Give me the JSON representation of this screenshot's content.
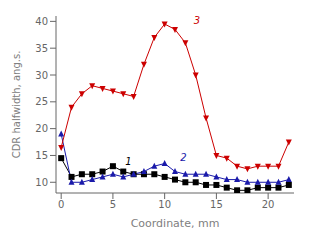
{
  "chart_data": {
    "type": "line",
    "title": "",
    "xlabel": "Coordinate, mm",
    "ylabel": "CDR halfwidth, ang.s.",
    "xlim": [
      -0.5,
      22.5
    ],
    "ylim": [
      8,
      41
    ],
    "xticks": [
      0,
      5,
      10,
      15,
      20
    ],
    "yticks": [
      10,
      15,
      20,
      25,
      30,
      35,
      40
    ],
    "grid": false,
    "series": [
      {
        "name": "1",
        "color": "#000000",
        "marker": "square",
        "x": [
          0,
          1,
          2,
          3,
          4,
          5,
          6,
          7,
          8,
          9,
          10,
          11,
          12,
          13,
          14,
          15,
          16,
          17,
          18,
          19,
          20,
          21,
          22
        ],
        "values": [
          14.5,
          11.0,
          11.5,
          11.5,
          12.0,
          13.0,
          12.0,
          11.5,
          11.5,
          11.5,
          11.0,
          10.5,
          10.0,
          10.0,
          9.5,
          9.5,
          9.0,
          8.5,
          8.5,
          9.0,
          9.0,
          9.0,
          9.5
        ]
      },
      {
        "name": "2",
        "color": "#1a1aaa",
        "marker": "triangle-up",
        "x": [
          0,
          1,
          2,
          3,
          4,
          5,
          6,
          7,
          8,
          9,
          10,
          11,
          12,
          13,
          14,
          15,
          16,
          17,
          18,
          19,
          20,
          21,
          22
        ],
        "values": [
          19.0,
          10.0,
          10.0,
          10.5,
          11.0,
          11.5,
          11.0,
          11.5,
          12.0,
          13.0,
          13.5,
          12.0,
          11.5,
          11.5,
          11.5,
          11.0,
          10.5,
          10.5,
          10.0,
          10.0,
          10.0,
          10.0,
          10.5
        ]
      },
      {
        "name": "3",
        "color": "#cc0000",
        "marker": "triangle-down",
        "x": [
          0,
          1,
          2,
          3,
          4,
          5,
          6,
          7,
          8,
          9,
          10,
          11,
          12,
          13,
          14,
          15,
          16,
          17,
          18,
          19,
          20,
          21,
          22
        ],
        "values": [
          16.5,
          24.0,
          26.5,
          28.0,
          27.5,
          27.0,
          26.5,
          26.0,
          32.0,
          37.0,
          39.5,
          38.5,
          36.0,
          30.0,
          22.0,
          15.0,
          14.5,
          13.0,
          12.5,
          13.0,
          13.0,
          13.0,
          17.5
        ]
      }
    ],
    "annotations": [
      {
        "text": "1",
        "x": 6.2,
        "y": 13.2,
        "color": "#000000"
      },
      {
        "text": "2",
        "x": 11.5,
        "y": 14.0,
        "color": "#1a1aaa"
      },
      {
        "text": "3",
        "x": 12.8,
        "y": 39.5,
        "color": "#cc0000"
      }
    ]
  }
}
